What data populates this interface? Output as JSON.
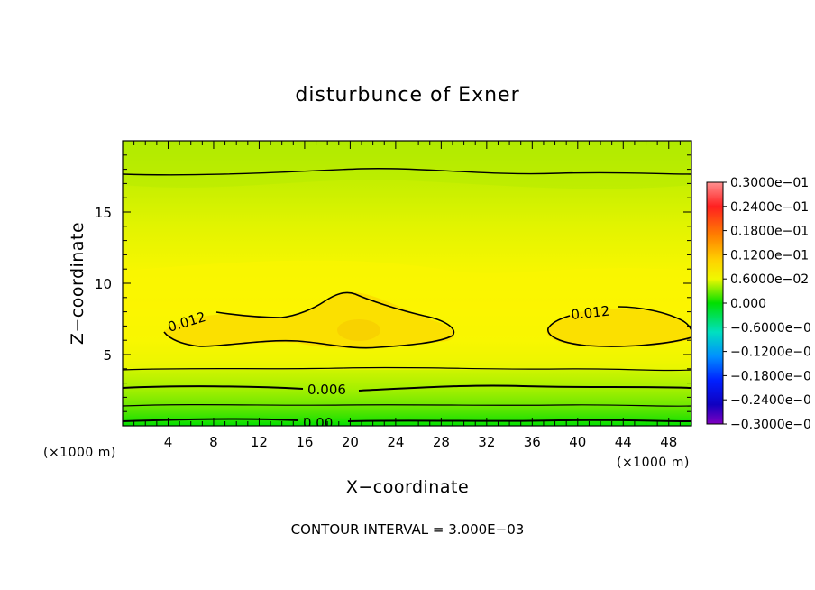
{
  "chart_data": {
    "type": "contour",
    "title": "disturbunce of Exner",
    "xlabel": "X−coordinate",
    "ylabel": "Z−coordinate",
    "x_unit_left": "(×1000 m)",
    "x_unit_right": "(×1000 m)",
    "xlim": [
      0,
      50
    ],
    "ylim": [
      0,
      20
    ],
    "x_ticks": [
      "4",
      "8",
      "12",
      "16",
      "20",
      "24",
      "28",
      "32",
      "36",
      "40",
      "44",
      "48"
    ],
    "x_tick_values": [
      4,
      8,
      12,
      16,
      20,
      24,
      28,
      32,
      36,
      40,
      44,
      48
    ],
    "y_ticks": [
      "5",
      "10",
      "15"
    ],
    "y_tick_values": [
      5,
      10,
      15
    ],
    "contour_interval_text": "CONTOUR INTERVAL = 3.000E−03",
    "contour_labels": [
      "0.012",
      "0.006",
      "0.00",
      "0.012"
    ],
    "colorbar": {
      "labels": [
        "0.3000e−01",
        "0.2400e−01",
        "0.1800e−01",
        "0.1200e−01",
        "0.6000e−02",
        "0.000",
        "−0.6000e−0",
        "−0.1200e−0",
        "−0.1800e−0",
        "−0.2400e−0",
        "−0.3000e−0"
      ],
      "min": -0.03,
      "max": 0.03
    },
    "grid": false
  }
}
